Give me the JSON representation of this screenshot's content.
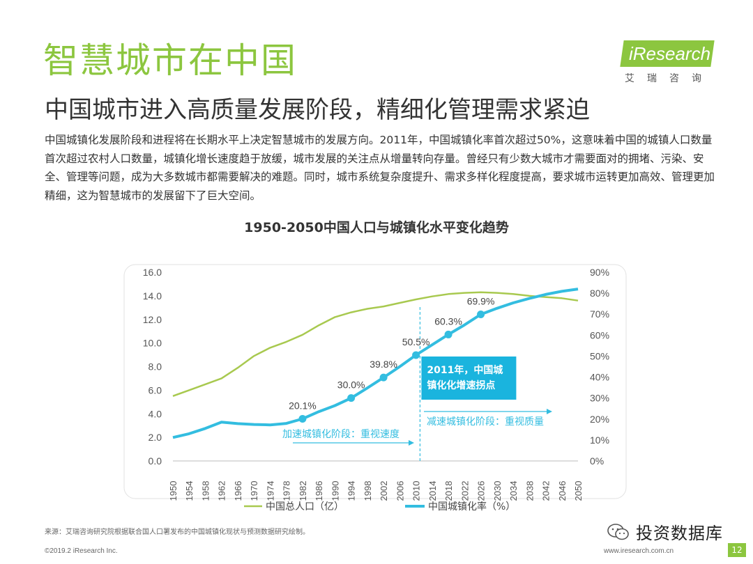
{
  "header": {
    "title": "智慧城市在中国",
    "subtitle": "中国城市进入高质量发展阶段，精细化管理需求紧迫",
    "logo_text": "iResearch",
    "logo_cn": "艾瑞咨询"
  },
  "body_text": "中国城镇化发展阶段和进程将在长期水平上决定智慧城市的发展方向。2011年，中国城镇化率首次超过50%，这意味着中国的城镇人口数量首次超过农村人口数量，城镇化增长速度趋于放缓，城市发展的关注点从增量转向存量。曾经只有少数大城市才需要面对的拥堵、污染、安全、管理等问题，成为大多数城市都需要解决的难题。同时，城市系统复杂度提升、需求多样化程度提高，要求城市运转更加高效、管理更加精细，这为智慧城市的发展留下了巨大空间。",
  "chart_data": {
    "type": "line",
    "title": "1950-2050中国人口与城镇化水平变化趋势",
    "x": [
      1950,
      1954,
      1958,
      1962,
      1966,
      1970,
      1974,
      1978,
      1982,
      1986,
      1990,
      1994,
      1998,
      2002,
      2006,
      2010,
      2014,
      2018,
      2022,
      2026,
      2030,
      2034,
      2038,
      2042,
      2046,
      2050
    ],
    "x_ticks": [
      "1950",
      "1954",
      "1958",
      "1962",
      "1966",
      "1970",
      "1974",
      "1978",
      "1982",
      "1986",
      "1990",
      "1994",
      "1998",
      "2002",
      "2006",
      "2010",
      "2014",
      "2018",
      "2022",
      "2026",
      "2030",
      "2034",
      "2038",
      "2042",
      "2046",
      "2050"
    ],
    "series": [
      {
        "name": "中国总人口（亿）",
        "axis": "left",
        "color": "#a8c94f",
        "values": [
          5.5,
          6.0,
          6.5,
          7.0,
          7.9,
          8.9,
          9.6,
          10.1,
          10.7,
          11.5,
          12.2,
          12.6,
          12.9,
          13.1,
          13.4,
          13.7,
          13.95,
          14.15,
          14.25,
          14.3,
          14.25,
          14.15,
          14.0,
          13.9,
          13.8,
          13.6
        ]
      },
      {
        "name": "中国城镇化率（%）",
        "axis": "right",
        "color": "#33bde0",
        "values": [
          11.2,
          13.0,
          15.5,
          18.5,
          17.8,
          17.4,
          17.2,
          17.9,
          20.1,
          23.5,
          26.4,
          30.0,
          34.8,
          39.8,
          45.0,
          50.5,
          55.4,
          60.3,
          64.9,
          69.9,
          72.8,
          75.4,
          77.5,
          79.4,
          80.9,
          82.0
        ]
      }
    ],
    "y_left": {
      "ticks": [
        "0.0",
        "2.0",
        "4.0",
        "6.0",
        "8.0",
        "10.0",
        "12.0",
        "14.0",
        "16.0"
      ],
      "range": [
        0,
        16
      ]
    },
    "y_right": {
      "ticks": [
        "0%",
        "10%",
        "20%",
        "30%",
        "40%",
        "50%",
        "60%",
        "70%",
        "80%",
        "90%"
      ],
      "range": [
        0,
        90
      ]
    },
    "labeled_points": [
      {
        "x": 1982,
        "value": 20.1,
        "label": "20.1%"
      },
      {
        "x": 1994,
        "value": 30.0,
        "label": "30.0%"
      },
      {
        "x": 2002,
        "value": 39.8,
        "label": "39.8%"
      },
      {
        "x": 2010,
        "value": 50.5,
        "label": "50.5%"
      },
      {
        "x": 2018,
        "value": 60.3,
        "label": "60.3%"
      },
      {
        "x": 2026,
        "value": 69.9,
        "label": "69.9%"
      }
    ],
    "callout": "2011年，中国城镇化化增速拐点",
    "phase_left": "加速城镇化阶段：重视速度",
    "phase_right": "减速城镇化阶段：重视质量",
    "legend_position": "bottom",
    "grid": false
  },
  "footer": {
    "source": "来源：艾瑞咨询研究院根据联合国人口署发布的中国城镇化现状与预测数据研究绘制。",
    "copyright": "©2019.2 iResearch Inc.",
    "site": "www.iresearch.com.cn",
    "watermark": "投资数据库",
    "page": "12"
  },
  "colors": {
    "accent": "#8cc63f",
    "population": "#a8c94f",
    "urbanization": "#33bde0",
    "callout_bg": "#1ab4de"
  }
}
